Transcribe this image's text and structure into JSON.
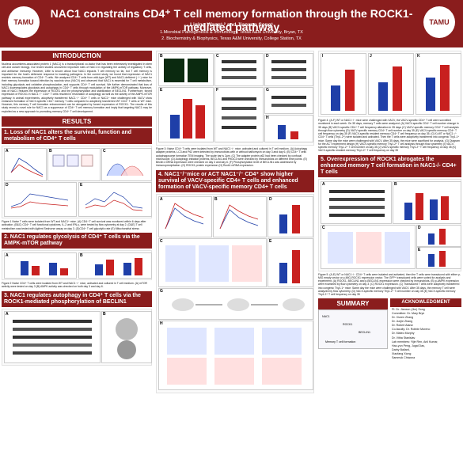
{
  "header": {
    "title": "NAC1 constrains CD4⁺ T cell memory formation through the ROCK1-mediated pathway",
    "authors": "Liqing Wang¹,² and Jianxun Song¹",
    "affiliations": [
      "1.Microbial Pathogenesis & Immunology, Texas A&M University, Bryan, TX",
      "2. Biochemistry & Biophysics, Texas A&M University, College Station, TX"
    ],
    "logo_left": "TAMU",
    "logo_right": "TAMU"
  },
  "introduction": {
    "heading": "INTRODUCTION",
    "text": "Nucleus accumbens-associated protein 1 (NAC1) is a transcriptional co-factor that has been extensively investigated in stem cell and cancer biology. Our recent studies uncovered important roles of NAC1 in regulating the activity of regulatory T cells, and antitumor immunity. However, Little is known about how NAC1 impacts T cell memory so far, but T cell memory is important for the host's defensive response to invading pathogens. In the current study, we found that expression of NAC1 restricts memory formation of CD4⁺ T cells. We analyzed CD4⁺ T cells from wild-type (WT) and NAC1-deficient (⁻/⁻) mice for their memory formation toward infection by vaccinia virus (VACV) and observed that NAC1 is essential for T cell metabolism, including glycolysis and oxidative phosphorylation, and supports CD4⁺ T cell survival. We further demonstrated that loss of NAC1 downregulates glycolysis and autophagy in CD4⁺ T cells through modulation of the AMPK-mTOR pathway. Moreover, loss of NAC1 reduces the expression of ROCK1 and the phosphorylation and stabilization of BECLIN1. Furthermore, forced expression of ROCK1 in NAC1⁻/⁻ CD4⁺ T cells resulted in restoration of autophagy as well as the activity of the AMPK-mTOR pathway in animal experiments, adoptively transferred NAC1⁻/⁻ CD4⁺ T cells or NAC1⁺ mice challenged with VACV show enhanced formation of VACV-specific CD4⁺ memory T cells compared to adoptively transferred WT CD4⁺ T cells or WT mice. However, this memory T cell formation enhancement can be abrogated by forced expression of ROCK1. The results of this study reveal a novel role for NAC1 as a suppressor of CD4⁺ T cell memory formation and imply that targeting NAC1 may be exploited as a new approach to promoting memory CD4⁺ T cell development."
  },
  "results": {
    "heading": "RESULTS",
    "sec1": {
      "heading": "1. Loss of NAC1 alters the survival, function and metabolism of CD4⁺ T cells",
      "caption": "Figure 1 Naive T cells were isolated from WT and NAC1⁺ mice. (A) CD4⁺ T cell survival was monitored within 6 days after activation. (B&C) CD4⁺ T cell functional cytokines, IL-2 and IFN-γ, were tested by flow cytometry at day 2. (D&E) T cell metabolism was tested with Agilent Seahorse assay on day 3. (D)CD4⁺ T cell glycolytic rate (E) Mitochondrial stress"
    },
    "sec2": {
      "heading": "2. NAC1 regulates glycolysis of CD4⁺ T cells via the AMPK-mTOR pathway",
      "caption": "Figure 2 Naive CD4⁺ T cells were isolated from WT and NAC1⁻/⁻ mice, activated and cultured in T cell medium. (A) mTOR activity were tested on day 3 (B) AMPK activity was checked on both day 3 and day 6."
    },
    "sec3": {
      "heading": "3. NAC1 regulates autophagy in CD4⁺ T cells via the ROCK1-mediated phosphorylation of BECLIN1"
    }
  },
  "center": {
    "fig3_caption": "Figure 3: Naive CD4⁺ T cells were isolated from WT and NAC1⁻/⁻ mice, activated and cultured in T cell medium. (A) Autophagy adapter proteins, LC3 and P62 were detected by immunoblots with or without bafilomycin on day 3 and day 6. (B) CD4⁺ T cells autophagosome formation TEM imaging. The scale bar is 2μm. (C) The adapter protein p62 had been checked by confocal microscope. (D) Autophagy initiation proteins, BECLIN1 and PIK3C3 were checked by Immunoblots on different time points. (E) Beclin1 mRNA expression were checked on day 3 and day 6. (F) Phosphorylation level of BECLIN1 was addressed by immunoprecipitation. (G) ROCK1 protein expression (H) Rock1 mRNA expression.",
    "sec4": {
      "heading": "4. NAC1⁻/⁻mice or ACT NAC1⁻/⁻ CD4⁺ show higher survival of VACV-specific CD4+ T cells and enhanced formation of VACV-specific memory CD4+ T cells"
    }
  },
  "right": {
    "fig4_caption": "Figure 4. (A-F) WT or NAC1⁻/⁻ mice were challenged with VACV, the VACV-specific CD4⁺ T cell were surveilled monitored in each week. On 35 days, memory T cells were analyzed. (A) VACV-specific CD4⁺ T cell number change in 35 days (B) VACV-specific CD4⁺ T cell frequency alteration in 35 days (C) VACV-specific memory CD4⁺ T cell analysis through flow cytometry (D) VACV-specific memory CD4⁺ T cell number on day 35 (E) VACV-specific memory CD4⁺ T cell frequency on day 35 (F) VACV-specific resident memory CD4⁺ T cell frequency on day 35. (G-K) WT or NAC1⁻/⁻ CD4⁺ T cells (Thy1.2⁺) were isolated and activated. Then the T cells were adoptively transferred into congenic Thy1.1⁺ mice. Same day the mice were challenged with VACV. After 35 days, the mice were sacrificed for analysis. (G) Diagram for the ACT experiment design (H) VACV-specific memory Thy1.2⁺ T cell analysis through flow cytometry (I) VACV-specific memory Thy1.2⁺ T cell number on day 35 (J) VACV-specific memory Thy1.2⁺ T cell frequency on day 35 (K) VACV-specific resident memory Thy1.2⁺ T cell frequency on day 35",
    "sec5": {
      "heading": "5. Overexpression of ROCK1 abrogates the enhanced memory T cell formation in NAC1-/- CD4+ T cells"
    },
    "fig5_caption": "Figure 5. (A-E) WT or NAC1⁻/⁻ CD4⁺ T cells were isolated and activated, then the T cells were transduced with either p-MIG empty vector or p-MIG-ROCK1 expression vector. The GFP⁺ transduced cells were sorted for analysis and experiment. (A) ROCK1, BECLIN1 and p-BECLIN1 expression were checked by immunoblots. (B) p-AMPK expression were examined by flow cytometry on day 3. (C) ROCK1 expression. (C) Transduced T cells were adoptively transferred into congenic Thy1.1⁺ mice. Same day the mice were challenged with VACV. After 35 days, the memory T cell were analyzed by flow cytometry. (D) VACV-specific memory Thy1.2⁺ T cell number on day 35 (E) VACV-specific memory Thy1.2⁺ T cell frequency on day 35",
    "summary": {
      "heading": "SUMMARY",
      "labels": [
        "NAC1",
        "ROCK1",
        "BECLIN1",
        "Memory T cell formation"
      ]
    },
    "ack": {
      "heading": "ACKNOWLEDGMENT",
      "lines": [
        "PI: Dr. Jianxun (Jim) Song",
        "Committee: Dr. Mary Bryk",
        "Dr. Xiuren Zhang",
        "Dr. Junjie Zhang",
        "Dr. Robert Alaniz",
        "Co-faculty: Dr. Robbie Moreno",
        "Dr. Mateo Murphy",
        "Dr. Vitha Stanislav",
        "Lab members: Yijie Ren, Anil Kumar,",
        "Hao-yun Peng, Jugal Das,",
        "Darby Ballard,",
        "Xiaofang Xiong",
        "Sammuk Chiwona"
      ]
    }
  },
  "panel_letters": {
    "f1": [
      "A",
      "B",
      "C",
      "D",
      "E"
    ],
    "f2": [
      "A",
      "B"
    ],
    "f3left": [
      "A",
      "B"
    ],
    "f3center": [
      "B",
      "C",
      "D",
      "E",
      "F",
      "G",
      "H"
    ],
    "f4top": [
      "A",
      "B",
      "C",
      "D",
      "E"
    ],
    "f4bottom": [
      "G",
      "H"
    ],
    "f4right": [
      "I",
      "J",
      "K"
    ],
    "f5": [
      "A",
      "B",
      "C",
      "D",
      "E"
    ]
  },
  "colors": {
    "brand": "#8a1d1d",
    "wt": "#1f3fa8",
    "ko": "#c8201f"
  }
}
